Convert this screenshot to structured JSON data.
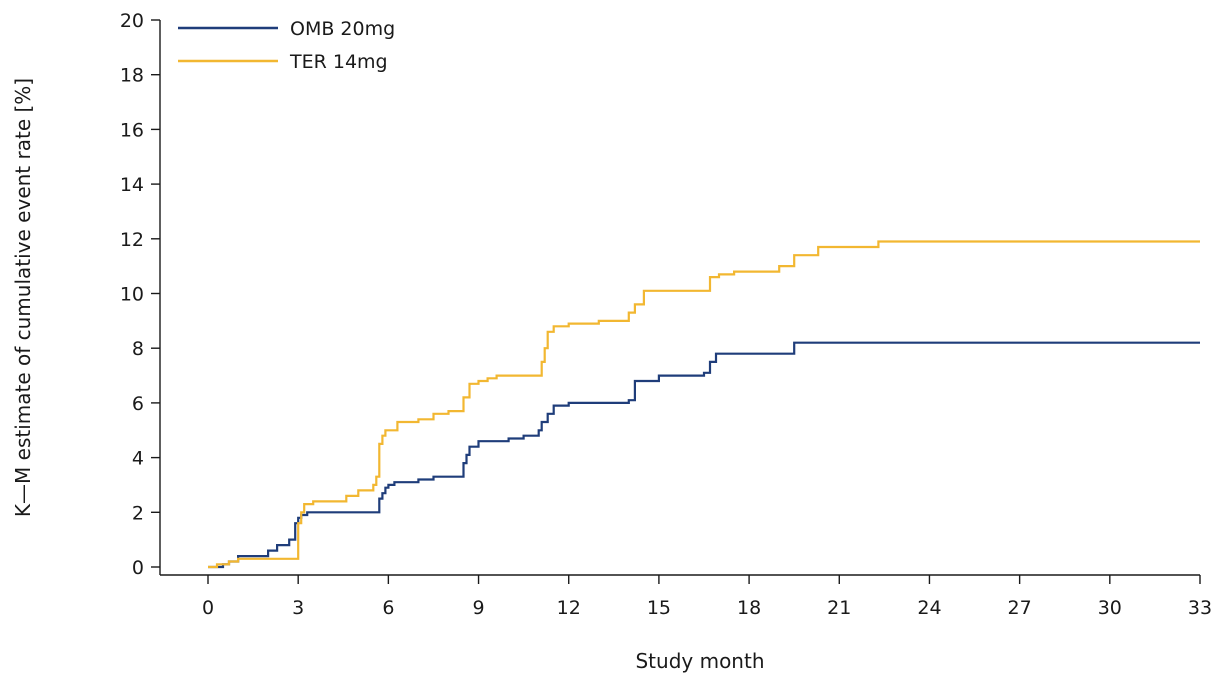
{
  "chart_data": {
    "type": "line",
    "title": "",
    "xlabel": "Study month",
    "ylabel": "K—M estimate of cumulative event rate [%]",
    "xlim": [
      0,
      33
    ],
    "ylim": [
      0,
      20
    ],
    "xticks": [
      0,
      3,
      6,
      9,
      12,
      15,
      18,
      21,
      24,
      27,
      30,
      33
    ],
    "yticks": [
      0,
      2,
      4,
      6,
      8,
      10,
      12,
      14,
      16,
      18,
      20
    ],
    "grid": false,
    "legend_position": "top-left",
    "step": true,
    "series": [
      {
        "name": "OMB 20mg",
        "color": "#1f3d7a",
        "x": [
          0,
          0.5,
          0.7,
          1.0,
          2.0,
          2.3,
          2.7,
          2.9,
          3.0,
          3.1,
          3.3,
          5.7,
          5.8,
          5.9,
          6.0,
          6.2,
          6.5,
          7.0,
          7.5,
          8.5,
          8.6,
          8.7,
          9.0,
          9.5,
          10.0,
          10.5,
          11.0,
          11.1,
          11.3,
          11.5,
          12.0,
          13.5,
          14.0,
          14.2,
          15.0,
          16.5,
          16.7,
          16.9,
          17.5,
          19.5,
          33.0
        ],
        "y": [
          0,
          0.1,
          0.2,
          0.4,
          0.6,
          0.8,
          1.0,
          1.6,
          1.8,
          1.9,
          2.0,
          2.5,
          2.7,
          2.9,
          3.0,
          3.1,
          3.1,
          3.2,
          3.3,
          3.8,
          4.1,
          4.4,
          4.6,
          4.6,
          4.7,
          4.8,
          5.0,
          5.3,
          5.6,
          5.9,
          6.0,
          6.0,
          6.1,
          6.8,
          7.0,
          7.1,
          7.5,
          7.8,
          7.8,
          8.2,
          8.2
        ]
      },
      {
        "name": "TER 14mg",
        "color": "#f2b731",
        "x": [
          0,
          0.3,
          0.7,
          1.0,
          2.9,
          3.0,
          3.1,
          3.2,
          3.5,
          4.0,
          4.6,
          5.0,
          5.5,
          5.6,
          5.7,
          5.8,
          5.9,
          6.0,
          6.3,
          7.0,
          7.5,
          8.0,
          8.5,
          8.7,
          9.0,
          9.3,
          9.6,
          10.0,
          11.0,
          11.1,
          11.2,
          11.3,
          11.5,
          12.0,
          13.0,
          14.0,
          14.2,
          14.5,
          15.0,
          16.7,
          17.0,
          17.5,
          18.0,
          19.0,
          19.5,
          20.0,
          20.3,
          22.0,
          22.3,
          33.0
        ],
        "y": [
          0,
          0.1,
          0.2,
          0.3,
          0.3,
          1.6,
          2.0,
          2.3,
          2.4,
          2.4,
          2.6,
          2.8,
          3.0,
          3.3,
          4.5,
          4.8,
          5.0,
          5.0,
          5.3,
          5.4,
          5.6,
          5.7,
          6.2,
          6.7,
          6.8,
          6.9,
          7.0,
          7.0,
          7.0,
          7.5,
          8.0,
          8.6,
          8.8,
          8.9,
          9.0,
          9.3,
          9.6,
          10.1,
          10.1,
          10.6,
          10.7,
          10.8,
          10.8,
          11.0,
          11.4,
          11.4,
          11.7,
          11.7,
          11.9,
          11.9
        ]
      }
    ]
  }
}
